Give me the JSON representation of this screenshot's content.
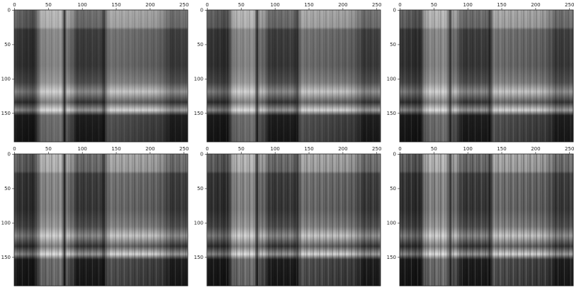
{
  "chart_data": [
    {
      "type": "image",
      "xlim": [
        -0.5,
        255.5
      ],
      "xticks": [
        0,
        50,
        100,
        150,
        200,
        250
      ],
      "ylim": [
        191.5,
        -0.5
      ],
      "yticks": [
        0,
        50,
        100,
        150
      ]
    },
    {
      "type": "image",
      "xlim": [
        -0.5,
        255.5
      ],
      "xticks": [
        0,
        50,
        100,
        150,
        200,
        250
      ],
      "ylim": [
        191.5,
        -0.5
      ],
      "yticks": [
        0,
        50,
        100,
        150
      ]
    },
    {
      "type": "image",
      "xlim": [
        -0.5,
        255.5
      ],
      "xticks": [
        0,
        50,
        100,
        150,
        200,
        250
      ],
      "ylim": [
        191.5,
        -0.5
      ],
      "yticks": [
        0,
        50,
        100,
        150
      ]
    },
    {
      "type": "image",
      "xlim": [
        -0.5,
        255.5
      ],
      "xticks": [
        0,
        50,
        100,
        150,
        200,
        250
      ],
      "ylim": [
        191.5,
        -0.5
      ],
      "yticks": [
        0,
        50,
        100,
        150
      ]
    },
    {
      "type": "image",
      "xlim": [
        -0.5,
        255.5
      ],
      "xticks": [
        0,
        50,
        100,
        150,
        200,
        250
      ],
      "ylim": [
        191.5,
        -0.5
      ],
      "yticks": [
        0,
        50,
        100,
        150
      ]
    },
    {
      "type": "image",
      "xlim": [
        -0.5,
        255.5
      ],
      "xticks": [
        0,
        50,
        100,
        150,
        200,
        250
      ],
      "ylim": [
        191.5,
        -0.5
      ],
      "yticks": [
        0,
        50,
        100,
        150
      ]
    }
  ]
}
